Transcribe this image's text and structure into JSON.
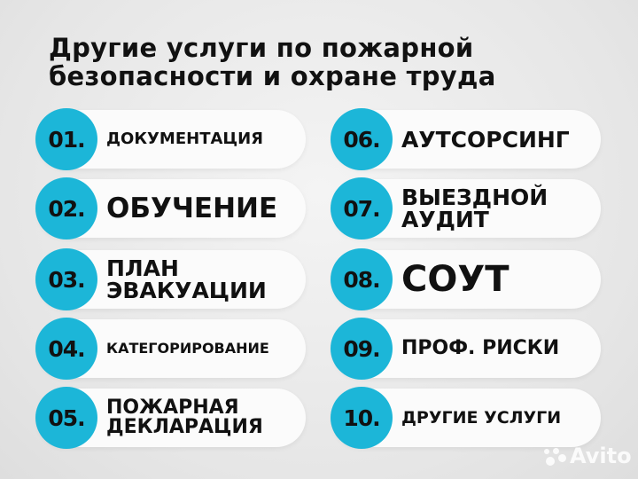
{
  "title": {
    "line1": "Другие услуги по пожарной",
    "line2": "безопасности и охране труда"
  },
  "accent_color": "#1cb6d8",
  "services": [
    {
      "number": "01.",
      "label": [
        "ДОКУМЕНТАЦИЯ"
      ]
    },
    {
      "number": "02.",
      "label": [
        "ОБУЧЕНИЕ"
      ]
    },
    {
      "number": "03.",
      "label": [
        "ПЛАН",
        "ЭВАКУАЦИИ"
      ]
    },
    {
      "number": "04.",
      "label": [
        "КАТЕГОРИРОВАНИЕ"
      ]
    },
    {
      "number": "05.",
      "label": [
        "ПОЖАРНАЯ",
        "ДЕКЛАРАЦИЯ"
      ]
    },
    {
      "number": "06.",
      "label": [
        "АУТСОРСИНГ"
      ]
    },
    {
      "number": "07.",
      "label": [
        "ВЫЕЗДНОЙ",
        "АУДИТ"
      ]
    },
    {
      "number": "08.",
      "label": [
        "СОУТ"
      ]
    },
    {
      "number": "09.",
      "label": [
        "ПРОФ. РИСКИ"
      ]
    },
    {
      "number": "10.",
      "label": [
        "ДРУГИЕ УСЛУГИ"
      ]
    }
  ],
  "watermark": "Avito"
}
